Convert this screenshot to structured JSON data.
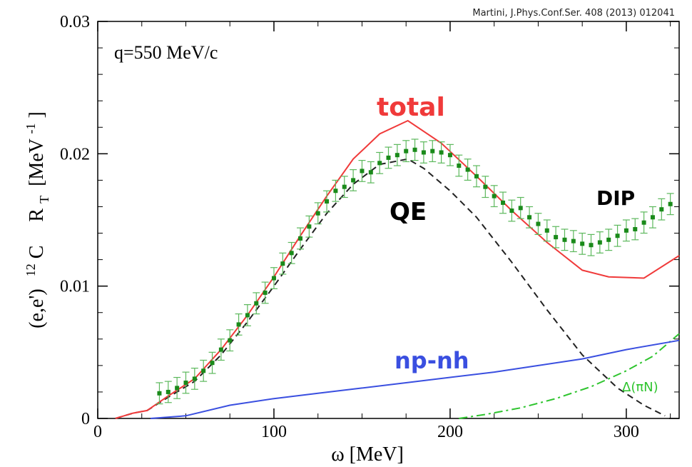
{
  "chart_data": {
    "type": "line",
    "citation": "Martini, J.Phys.Conf.Ser. 408 (2013) 012041",
    "inset_label": "q=550 MeV/c",
    "xlabel": "ω [MeV]",
    "ylabel_parts": {
      "pre": "(e,e')",
      "sup_mass": "12",
      "nucleus": "C",
      "R": "R",
      "sub": "T",
      "unit_open": "[MeV",
      "sup_unit": "-1",
      "unit_close": "]"
    },
    "xlim": [
      0,
      330
    ],
    "ylim": [
      0,
      0.03
    ],
    "x_ticks": [
      0,
      100,
      200,
      300
    ],
    "x_tick_labels": [
      "0",
      "100",
      "200",
      "300"
    ],
    "y_ticks": [
      0,
      0.01,
      0.02,
      0.03
    ],
    "y_tick_labels": [
      "0",
      "0.01",
      "0.02",
      "0.03"
    ],
    "annotations": {
      "total": "total",
      "qe": "QE",
      "dip": "DIP",
      "npnh": "np-nh",
      "delta": "Δ(πN)"
    },
    "colors": {
      "total": "#f03a3a",
      "qe": "#222222",
      "npnh": "#3a4fe0",
      "delta": "#2ec42e",
      "data": "#1a8a1a",
      "errorbar": "#5cb85c"
    },
    "series": [
      {
        "label_key": "total",
        "style": "solid",
        "x": [
          10,
          15,
          20,
          28,
          40,
          55,
          70,
          85,
          100,
          115,
          130,
          145,
          160,
          176,
          195,
          215,
          235,
          255,
          275,
          290,
          310,
          330
        ],
        "y": [
          0.0,
          0.0002,
          0.0004,
          0.0006,
          0.0017,
          0.003,
          0.0052,
          0.0078,
          0.0107,
          0.0138,
          0.0168,
          0.0196,
          0.0215,
          0.0225,
          0.0208,
          0.0183,
          0.0157,
          0.0133,
          0.0112,
          0.0107,
          0.0106,
          0.0123
        ]
      },
      {
        "label_key": "qe",
        "style": "dashed",
        "x": [
          10,
          20,
          28,
          40,
          55,
          70,
          85,
          100,
          115,
          130,
          145,
          160,
          176,
          185,
          200,
          215,
          235,
          255,
          275,
          295,
          310,
          322
        ],
        "y": [
          0.0,
          0.0004,
          0.0006,
          0.0016,
          0.0028,
          0.0048,
          0.0073,
          0.01,
          0.0128,
          0.0155,
          0.0177,
          0.0192,
          0.0196,
          0.0189,
          0.0172,
          0.0152,
          0.0118,
          0.0082,
          0.0048,
          0.0023,
          0.001,
          0.0002
        ]
      },
      {
        "label_key": "npnh",
        "style": "solid",
        "x": [
          30,
          50,
          75,
          100,
          125,
          150,
          175,
          200,
          225,
          250,
          275,
          300,
          330
        ],
        "y": [
          0.0,
          0.0002,
          0.001,
          0.0015,
          0.0019,
          0.0023,
          0.0027,
          0.0031,
          0.0035,
          0.004,
          0.0045,
          0.0052,
          0.0059
        ]
      },
      {
        "label_key": "delta",
        "style": "dashdot",
        "x": [
          205,
          220,
          240,
          260,
          280,
          300,
          315,
          330
        ],
        "y": [
          0.0,
          0.0003,
          0.0008,
          0.0015,
          0.0024,
          0.0036,
          0.0047,
          0.0064
        ]
      },
      {
        "label_key": "data",
        "style": "points",
        "x": [
          35,
          40,
          45,
          50,
          55,
          60,
          65,
          70,
          75,
          80,
          85,
          90,
          95,
          100,
          105,
          110,
          115,
          120,
          125,
          130,
          135,
          140,
          145,
          150,
          155,
          160,
          165,
          170,
          175,
          180,
          185,
          190,
          195,
          200,
          205,
          210,
          215,
          220,
          225,
          230,
          235,
          240,
          245,
          250,
          255,
          260,
          265,
          270,
          275,
          280,
          285,
          290,
          295,
          300,
          305,
          310,
          315,
          320,
          325
        ],
        "y": [
          0.0019,
          0.002,
          0.0023,
          0.0027,
          0.003,
          0.0036,
          0.0042,
          0.0052,
          0.0059,
          0.0071,
          0.0078,
          0.0087,
          0.0095,
          0.0106,
          0.0117,
          0.0125,
          0.0136,
          0.0145,
          0.0155,
          0.0164,
          0.0172,
          0.0175,
          0.018,
          0.0187,
          0.0186,
          0.0193,
          0.0197,
          0.0199,
          0.0202,
          0.0203,
          0.0201,
          0.0202,
          0.0201,
          0.0199,
          0.0191,
          0.0188,
          0.0183,
          0.0175,
          0.0168,
          0.0163,
          0.0157,
          0.0159,
          0.0152,
          0.0147,
          0.0142,
          0.0137,
          0.0135,
          0.0134,
          0.0132,
          0.0131,
          0.0133,
          0.0135,
          0.0138,
          0.0142,
          0.0143,
          0.0148,
          0.0152,
          0.0158,
          0.0162
        ],
        "err": 0.0008
      }
    ]
  }
}
